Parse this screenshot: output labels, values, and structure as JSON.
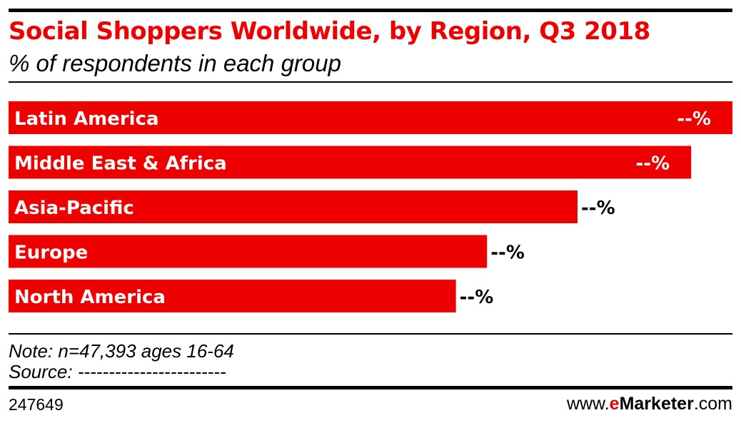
{
  "header": {
    "title": "Social Shoppers Worldwide, by Region, Q3 2018",
    "subtitle": "% of respondents in each group"
  },
  "colors": {
    "bar": "#ee0000",
    "title": "#ee0000",
    "text": "#000000"
  },
  "chart_data": {
    "type": "bar",
    "orientation": "horizontal",
    "categories": [
      "Latin America",
      "Middle East & Africa",
      "Asia-Pacific",
      "Europe",
      "North America"
    ],
    "values": [
      100,
      94.3,
      78.6,
      66.1,
      61.8
    ],
    "value_labels": [
      "--%",
      "--%",
      "--%",
      "--%",
      "--%"
    ],
    "xlim": [
      0,
      100
    ],
    "grid": false,
    "legend": "none"
  },
  "footer": {
    "note": "Note: n=47,393 ages 16-64",
    "source": "Source: ------------------------",
    "chart_id": "247649",
    "brand_prefix": "www.",
    "brand_e": "e",
    "brand_name": "Marketer",
    "brand_suffix": ".com"
  }
}
